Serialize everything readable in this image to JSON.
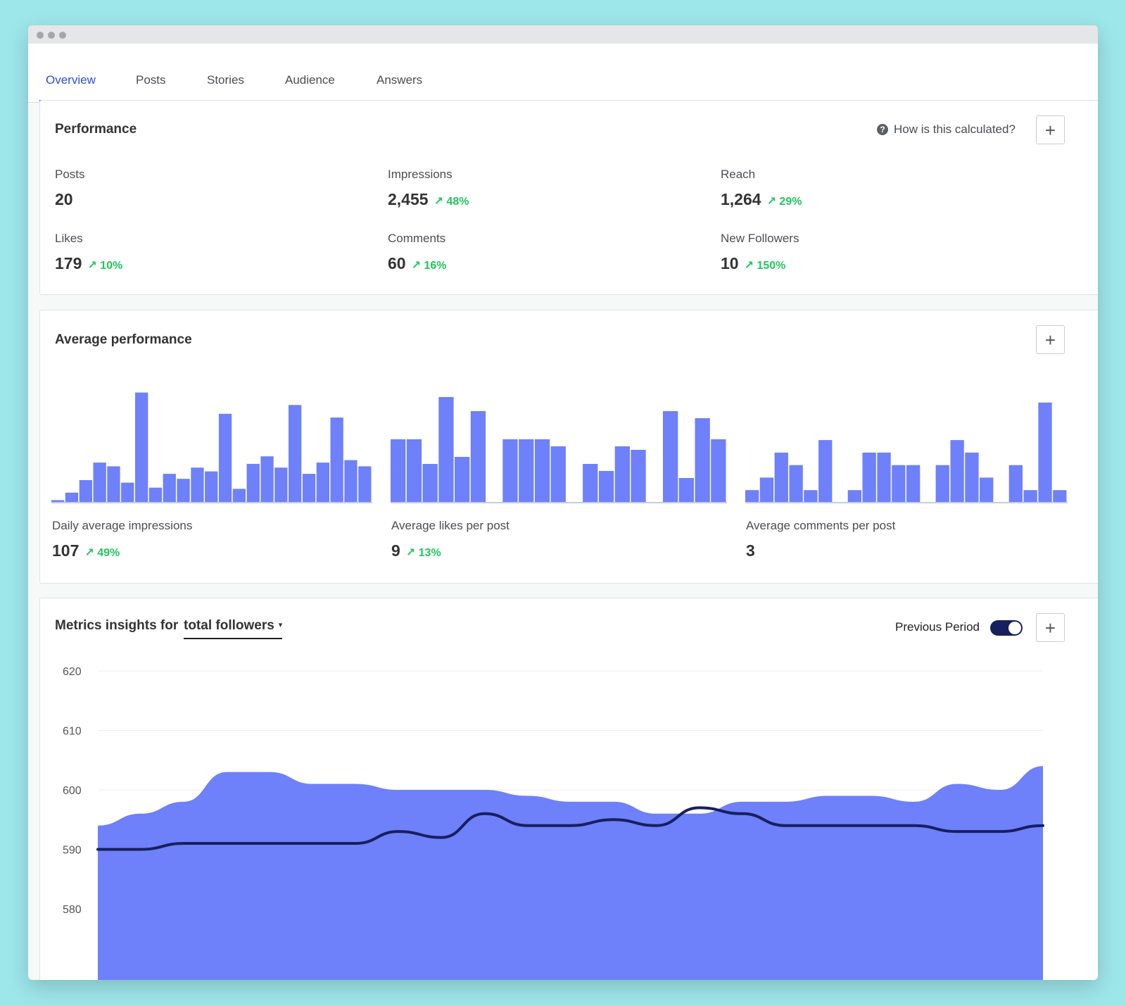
{
  "tabs": [
    {
      "label": "Overview",
      "active": true
    },
    {
      "label": "Posts"
    },
    {
      "label": "Stories"
    },
    {
      "label": "Audience"
    },
    {
      "label": "Answers"
    }
  ],
  "performance": {
    "title": "Performance",
    "help_text": "How is this calculated?",
    "help_icon": "?",
    "add_label": "+",
    "metrics": [
      {
        "label": "Posts",
        "value": "20",
        "change": ""
      },
      {
        "label": "Impressions",
        "value": "2,455",
        "change": "↗ 48%"
      },
      {
        "label": "Reach",
        "value": "1,264",
        "change": "↗ 29%"
      },
      {
        "label": "Likes",
        "value": "179",
        "change": "↗ 10%"
      },
      {
        "label": "Comments",
        "value": "60",
        "change": "↗ 16%"
      },
      {
        "label": "New Followers",
        "value": "10",
        "change": "↗ 150%"
      }
    ]
  },
  "average_performance": {
    "title": "Average performance",
    "add_label": "+",
    "charts": [
      {
        "label": "Daily average impressions",
        "value": "107",
        "change": "↗ 49%"
      },
      {
        "label": "Average likes per post",
        "value": "9",
        "change": "↗ 13%"
      },
      {
        "label": "Average comments per post",
        "value": "3",
        "change": ""
      }
    ]
  },
  "metrics_insights": {
    "title_prefix": "Metrics insights for",
    "metric_selected": "total followers",
    "caret": "▾",
    "previous_period_label": "Previous Period",
    "previous_period_on": true,
    "add_label": "+"
  },
  "colors": {
    "accent": "#3650e0",
    "bar": "#6e80fa",
    "area": "#6e80fa",
    "prev_line": "#17205e",
    "positive": "#22c55e"
  },
  "chart_data": [
    {
      "type": "bar",
      "title": "",
      "xlabel": "",
      "ylabel": "",
      "values": [
        2,
        8,
        18,
        32,
        29,
        16,
        88,
        12,
        23,
        19,
        28,
        25,
        71,
        11,
        31,
        37,
        28,
        78,
        23,
        32,
        68,
        34,
        29
      ],
      "ylim": [
        0,
        90
      ]
    },
    {
      "type": "bar",
      "title": "",
      "xlabel": "",
      "ylabel": "",
      "values": [
        9,
        9,
        5.5,
        15,
        6.5,
        13,
        0,
        9,
        9,
        9,
        8,
        0,
        5.5,
        4.5,
        8,
        7.5,
        0,
        13,
        3.5,
        12,
        9
      ],
      "ylim": [
        0,
        16
      ]
    },
    {
      "type": "bar",
      "title": "",
      "xlabel": "",
      "ylabel": "",
      "values": [
        1,
        2,
        4,
        3,
        1,
        5,
        0,
        1,
        4,
        4,
        3,
        3,
        0,
        3,
        5,
        4,
        2,
        0,
        3,
        1,
        8,
        1
      ],
      "ylim": [
        0,
        9
      ]
    },
    {
      "type": "area",
      "title": "",
      "xlabel": "",
      "ylabel": "",
      "ylim": [
        572,
        621
      ],
      "y_ticks": [
        620,
        610,
        600,
        590,
        580
      ],
      "grid": true,
      "series": [
        {
          "values": [
            594,
            596,
            598,
            603,
            603,
            601,
            601,
            600,
            600,
            600,
            599,
            598,
            598,
            596,
            596,
            598,
            598,
            599,
            599,
            598,
            601,
            600,
            604
          ]
        },
        {
          "values": [
            590,
            590,
            591,
            591,
            591,
            591,
            591,
            593,
            592,
            596,
            594,
            594,
            595,
            594,
            597,
            596,
            594,
            594,
            594,
            594,
            593,
            593,
            594
          ]
        }
      ]
    }
  ]
}
